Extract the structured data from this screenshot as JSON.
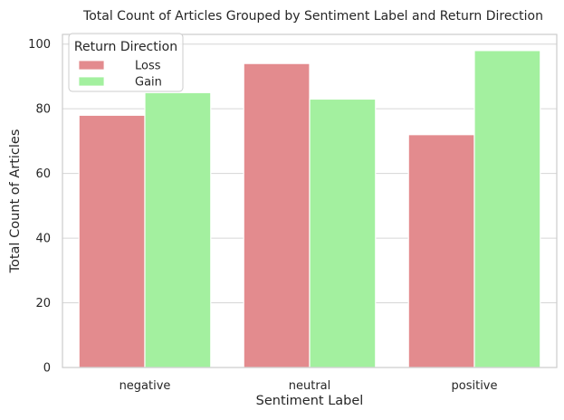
{
  "chart_data": {
    "type": "bar",
    "title": "Total Count of Articles Grouped by Sentiment Label and Return Direction",
    "xlabel": "Sentiment Label",
    "ylabel": "Total Count of Articles",
    "categories": [
      "negative",
      "neutral",
      "positive"
    ],
    "series": [
      {
        "name": "Loss",
        "values": [
          78,
          94,
          72
        ],
        "color": "#e38b8e"
      },
      {
        "name": "Gain",
        "values": [
          85,
          83,
          98
        ],
        "color": "#a3f09f"
      }
    ],
    "ylim": [
      0,
      103
    ],
    "yticks": [
      0,
      20,
      40,
      60,
      80,
      100
    ],
    "grid": true,
    "legend": {
      "title": "Return Direction",
      "placement": "top-left"
    }
  }
}
